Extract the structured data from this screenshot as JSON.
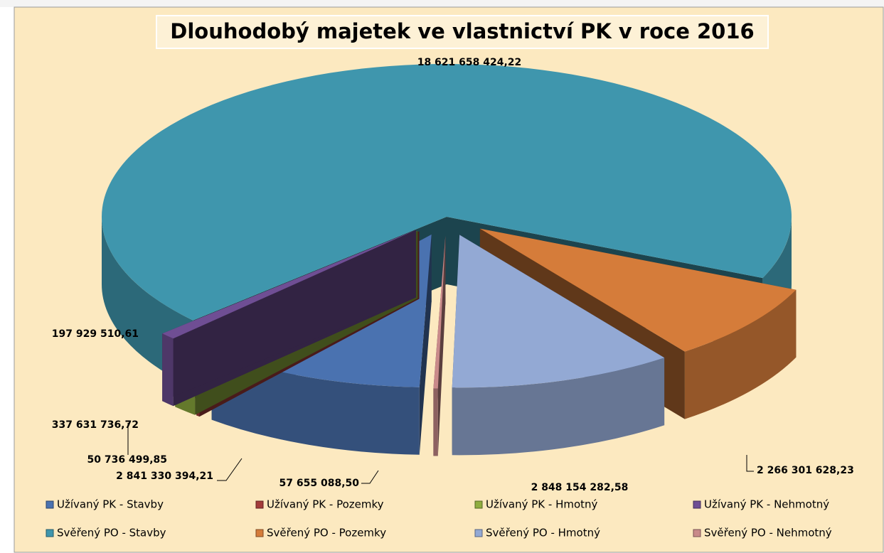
{
  "chart_data": {
    "type": "pie",
    "title": "Dlouhodobý majetek ve vlastnictví PK v roce 2016",
    "categories": [
      "Užívaný PK - Stavby",
      "Užívaný PK - Pozemky",
      "Užívaný PK - Hmotný",
      "Užívaný PK - Nehmotný",
      "Svěřený PO - Stavby",
      "Svěřený PO - Pozemky",
      "Svěřený PO - Hmotný",
      "Svěřený PO - Nehmotný"
    ],
    "values": [
      2841330394.21,
      50736499.85,
      337631736.72,
      197929510.61,
      18621658424.22,
      2266301628.23,
      2848154282.58,
      57655088.5
    ],
    "value_labels": [
      "2 841 330 394,21",
      "50 736 499,85",
      "337 631 736,72",
      "197 929 510,61",
      "18 621 658 424,22",
      "2 266 301 628,23",
      "2 848 154 282,58",
      "57 655 088,50"
    ],
    "colors": [
      "#4a72b0",
      "#a33b3a",
      "#8fad3f",
      "#6f4e94",
      "#3f96ad",
      "#d57c3a",
      "#93a9d4",
      "#c98a8a"
    ],
    "legend": "bottom"
  }
}
